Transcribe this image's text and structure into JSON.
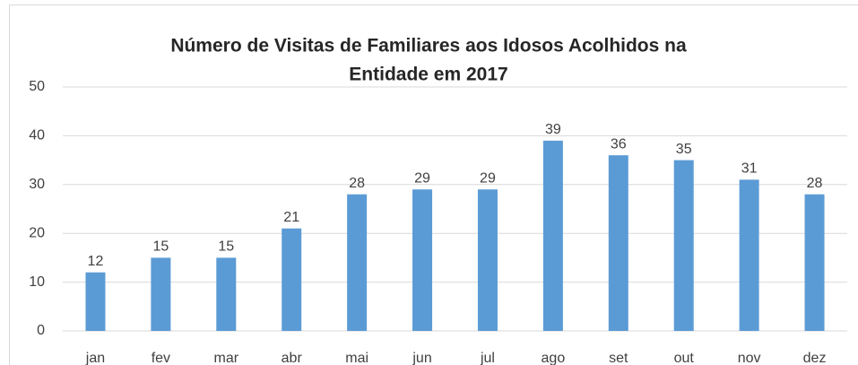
{
  "chart_data": {
    "type": "bar",
    "title": [
      "Número de Visitas de Familiares aos Idosos Acolhidos na",
      "Entidade em 2017"
    ],
    "categories": [
      "jan",
      "fev",
      "mar",
      "abr",
      "mai",
      "jun",
      "jul",
      "ago",
      "set",
      "out",
      "nov",
      "dez"
    ],
    "values": [
      12,
      15,
      15,
      21,
      28,
      29,
      29,
      39,
      36,
      35,
      31,
      28
    ],
    "color": "#5b9bd5",
    "ylim": [
      0,
      50
    ],
    "yticks": [
      0,
      10,
      20,
      30,
      40,
      50
    ],
    "grid": true
  }
}
